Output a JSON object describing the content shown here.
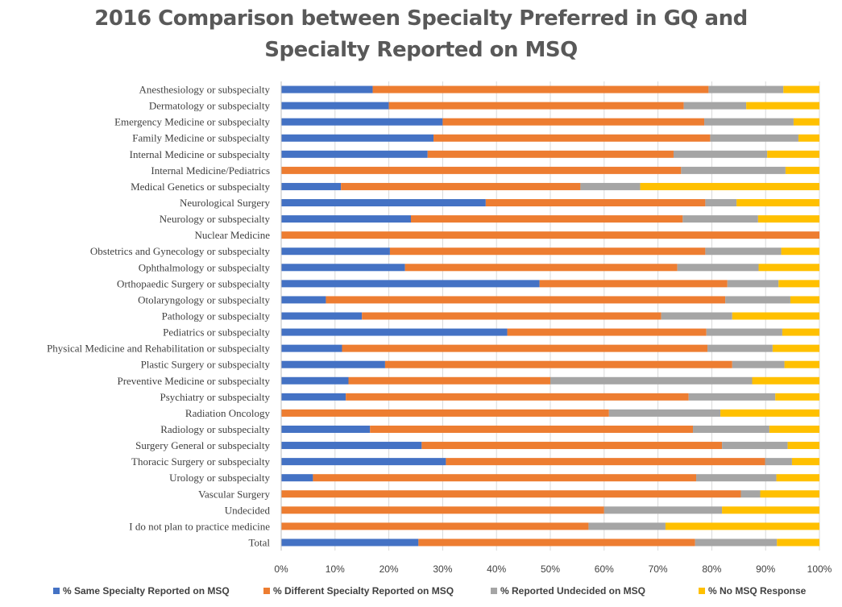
{
  "chart_data": {
    "type": "bar",
    "orientation": "horizontal",
    "stacked": "percent",
    "title_line1": "2016 Comparison between Specialty Preferred in GQ and",
    "title_line2": "Specialty Reported on MSQ",
    "xlabel": "",
    "ylabel": "",
    "xlim": [
      0,
      100
    ],
    "x_ticks": [
      "0%",
      "10%",
      "20%",
      "30%",
      "40%",
      "50%",
      "60%",
      "70%",
      "80%",
      "90%",
      "100%"
    ],
    "grid": "vertical",
    "legend_position": "bottom",
    "categories": [
      "Anesthesiology or subspecialty",
      "Dermatology or subspecialty",
      "Emergency Medicine or subspecialty",
      "Family Medicine or subspecialty",
      "Internal Medicine or subspecialty",
      "Internal Medicine/Pediatrics",
      "Medical Genetics or subspecialty",
      "Neurological Surgery",
      "Neurology or subspecialty",
      "Nuclear Medicine",
      "Obstetrics and Gynecology or subspecialty",
      "Ophthalmology or subspecialty",
      "Orthopaedic Surgery or subspecialty",
      "Otolaryngology or subspecialty",
      "Pathology or subspecialty",
      "Pediatrics or subspecialty",
      "Physical Medicine and Rehabilitation or subspecialty",
      "Plastic Surgery or subspecialty",
      "Preventive Medicine or subspecialty",
      "Psychiatry or subspecialty",
      "Radiation Oncology",
      "Radiology or subspecialty",
      "Surgery General or subspecialty",
      "Thoracic Surgery or subspecialty",
      "Urology or subspecialty",
      "Vascular Surgery",
      "Undecided",
      "I do not plan to practice medicine",
      "Total"
    ],
    "series": [
      {
        "name": "% Same Specialty Reported on MSQ",
        "color": "#4472C4",
        "values": [
          17,
          20,
          30,
          28.3,
          27.2,
          0,
          11.1,
          38,
          24.1,
          0,
          20.2,
          23,
          48,
          8.3,
          15,
          42,
          11.3,
          19.3,
          12.5,
          12,
          0,
          16.5,
          26.1,
          30.6,
          5.9,
          0,
          0,
          0,
          25.5
        ]
      },
      {
        "name": "% Different Specialty Reported on MSQ",
        "color": "#ED7D31",
        "values": [
          62.4,
          54.8,
          48.6,
          51.4,
          45.7,
          74.3,
          44.5,
          40.8,
          50.5,
          100,
          58.6,
          50.6,
          34.9,
          74.2,
          55.6,
          37,
          67.9,
          64.5,
          37.5,
          63.7,
          60.9,
          60,
          55.8,
          59.3,
          71.2,
          85.4,
          60,
          57.1,
          51.4
        ]
      },
      {
        "name": "% Reported Undecided on MSQ",
        "color": "#A5A5A5",
        "values": [
          13.9,
          11.6,
          16.6,
          16.4,
          17.4,
          19.4,
          11.1,
          5.8,
          14,
          0,
          14.1,
          15.1,
          9.5,
          12.1,
          13.2,
          14.1,
          12.1,
          9.7,
          37.5,
          16.1,
          20.7,
          14.2,
          12.2,
          5,
          14.9,
          3.6,
          21.9,
          14.3,
          15.2
        ]
      },
      {
        "name": "% No MSQ Response",
        "color": "#FFC000",
        "values": [
          6.7,
          13.6,
          4.8,
          3.9,
          9.7,
          6.3,
          33.3,
          15.4,
          11.4,
          0,
          7.1,
          11.3,
          7.6,
          5.4,
          16.2,
          6.9,
          8.7,
          6.5,
          12.5,
          8.2,
          18.4,
          9.3,
          5.9,
          5.1,
          8,
          11,
          18.1,
          28.6,
          7.9
        ]
      }
    ]
  }
}
